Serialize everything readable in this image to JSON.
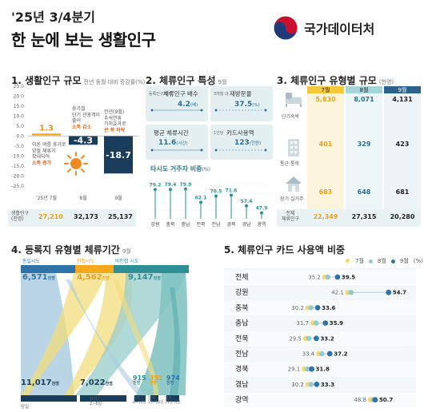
{
  "header": {
    "period": "'25년 3/4분기",
    "title": "한 눈에 보는 생활인구",
    "logo_text": "국가데이터처"
  },
  "colors": {
    "orange": "#f6a81c",
    "yellow": "#f5d76e",
    "navy": "#1b3d5c",
    "teal": "#8fcbd0",
    "blue": "#2e74a8",
    "tealdark": "#2e8f95"
  },
  "s1": {
    "title": "1. 생활인구 규모",
    "subtitle": "전년 동월 대비 증감률(%)",
    "axis_ticks": [
      "25.0",
      "20.0",
      "15.0",
      "10.0",
      "5.0",
      "0.0",
      "-5.0",
      "-10.0",
      "-15.0",
      "-20.0",
      "-25.0"
    ],
    "bars": [
      {
        "label": "'25년 7월",
        "value": 1.3,
        "display": "1.3"
      },
      {
        "label": "8월",
        "value": -4.3,
        "display": "-4.3"
      },
      {
        "label": "9월",
        "value": -18.7,
        "display": "-18.7"
      }
    ],
    "notes": {
      "july": [
        "이른 여름 휴가로",
        "양월 체류가",
        "확대되어"
      ],
      "july_hl": "소폭 증가",
      "aug": [
        "휴가철",
        "단기 관광객이",
        "줄어"
      ],
      "aug_hl": "소폭 감소",
      "sep": [
        "전년(9월)",
        "추석연휴",
        "기저효과로"
      ],
      "sep_hl": "큰 폭 하락"
    },
    "pop_label": "생활인구",
    "pop_unit": "(천명)",
    "pop_values": [
      "27,210",
      "32,173",
      "25,137"
    ]
  },
  "s2": {
    "title": "2. 체류인구 특성",
    "subtitle": "9월",
    "cards": [
      {
        "note": "등록인구 대비",
        "label": "체류인구 배수",
        "value": "4.2",
        "unit": "(배)"
      },
      {
        "note": "3개월 내",
        "label": "재방문율",
        "value": "37.5",
        "unit": "(%)"
      },
      {
        "note": "",
        "label": "평균 체류시간",
        "value": "11.6",
        "unit": "(시간)"
      },
      {
        "note": "1인당",
        "label": "카드사용액",
        "value": "123",
        "unit": "(천원)"
      }
    ],
    "other_title": "타시도 거주자 비중",
    "other_unit": "(%)",
    "regions": [
      "강원",
      "충북",
      "충남",
      "전북",
      "전남",
      "경북",
      "경남",
      "광역"
    ],
    "values": [
      79.2,
      79.4,
      79.9,
      62.1,
      70.5,
      71.6,
      57.4,
      47.9
    ],
    "labels": [
      "79.2",
      "79.4",
      "79.9",
      "62.1",
      "70.5",
      "71.6",
      "57.4",
      "47.9"
    ]
  },
  "s3": {
    "title": "3. 체류인구 유형별 규모",
    "subtitle": "(천명)",
    "months": [
      "7월",
      "8월",
      "9월"
    ],
    "rows": [
      {
        "label": "단기숙박",
        "values": [
          "5,830",
          "8,071",
          "4,131"
        ]
      },
      {
        "label": "통근·통학",
        "values": [
          "401",
          "329",
          "423"
        ]
      },
      {
        "label": "장기 실거주",
        "values": [
          "683",
          "648",
          "681"
        ]
      }
    ],
    "total_label": "전체",
    "total_sub": "체류인구",
    "totals": [
      "22,349",
      "27,315",
      "20,280"
    ]
  },
  "s4": {
    "title": "4. 등록지 유형별 체류기간",
    "subtitle": "9월",
    "sources": [
      {
        "name": "동일시도",
        "value": "6,571",
        "unit": "천명"
      },
      {
        "name": "인접시도",
        "value": "4,562",
        "unit": "천명"
      },
      {
        "name": "비인접 시도",
        "value": "9,147",
        "unit": "천명"
      }
    ],
    "targets": [
      {
        "name": "당일",
        "value": "11,017",
        "unit": "천명"
      },
      {
        "name": "단기",
        "sub": "2~6일",
        "value": "7,022",
        "unit": "천명"
      },
      {
        "name": "중기",
        "sub": "8~14일",
        "value": "915",
        "unit": "천명"
      },
      {
        "name": "장기",
        "sub": "15~20일",
        "value": "351",
        "unit": "천명"
      },
      {
        "name": "장기",
        "sub": "21일 이상",
        "value": "974",
        "unit": "천명"
      }
    ]
  },
  "s5": {
    "title": "5. 체류인구 카드 사용액 비중",
    "legend": [
      "7월",
      "8월",
      "9월"
    ],
    "legend_unit": "(%)",
    "rows": [
      {
        "name": "전체",
        "left": 35.2,
        "right": 39.5,
        "left_label": "35.2",
        "right_label": "39.5"
      },
      {
        "name": "강원",
        "left": 42.1,
        "right": 54.7,
        "left_label": "42.1",
        "right_label": "54.7"
      },
      {
        "name": "충북",
        "left": 30.2,
        "right": 33.6,
        "left_label": "30.2",
        "right_label": "33.6"
      },
      {
        "name": "충남",
        "left": 31.7,
        "right": 35.9,
        "left_label": "31.7",
        "right_label": "35.9"
      },
      {
        "name": "전북",
        "left": 29.5,
        "right": 33.2,
        "left_label": "29.5",
        "right_label": "33.2"
      },
      {
        "name": "전남",
        "left": 33.4,
        "right": 37.2,
        "left_label": "33.4",
        "right_label": "37.2"
      },
      {
        "name": "경북",
        "left": 29.1,
        "right": 31.8,
        "left_label": "29.1",
        "right_label": "31.8"
      },
      {
        "name": "경남",
        "left": 30.2,
        "right": 33.3,
        "left_label": "30.2",
        "right_label": "33.3"
      },
      {
        "name": "광역",
        "left": 48.8,
        "right": 50.7,
        "left_label": "48.8",
        "right_label": "50.7"
      }
    ]
  }
}
